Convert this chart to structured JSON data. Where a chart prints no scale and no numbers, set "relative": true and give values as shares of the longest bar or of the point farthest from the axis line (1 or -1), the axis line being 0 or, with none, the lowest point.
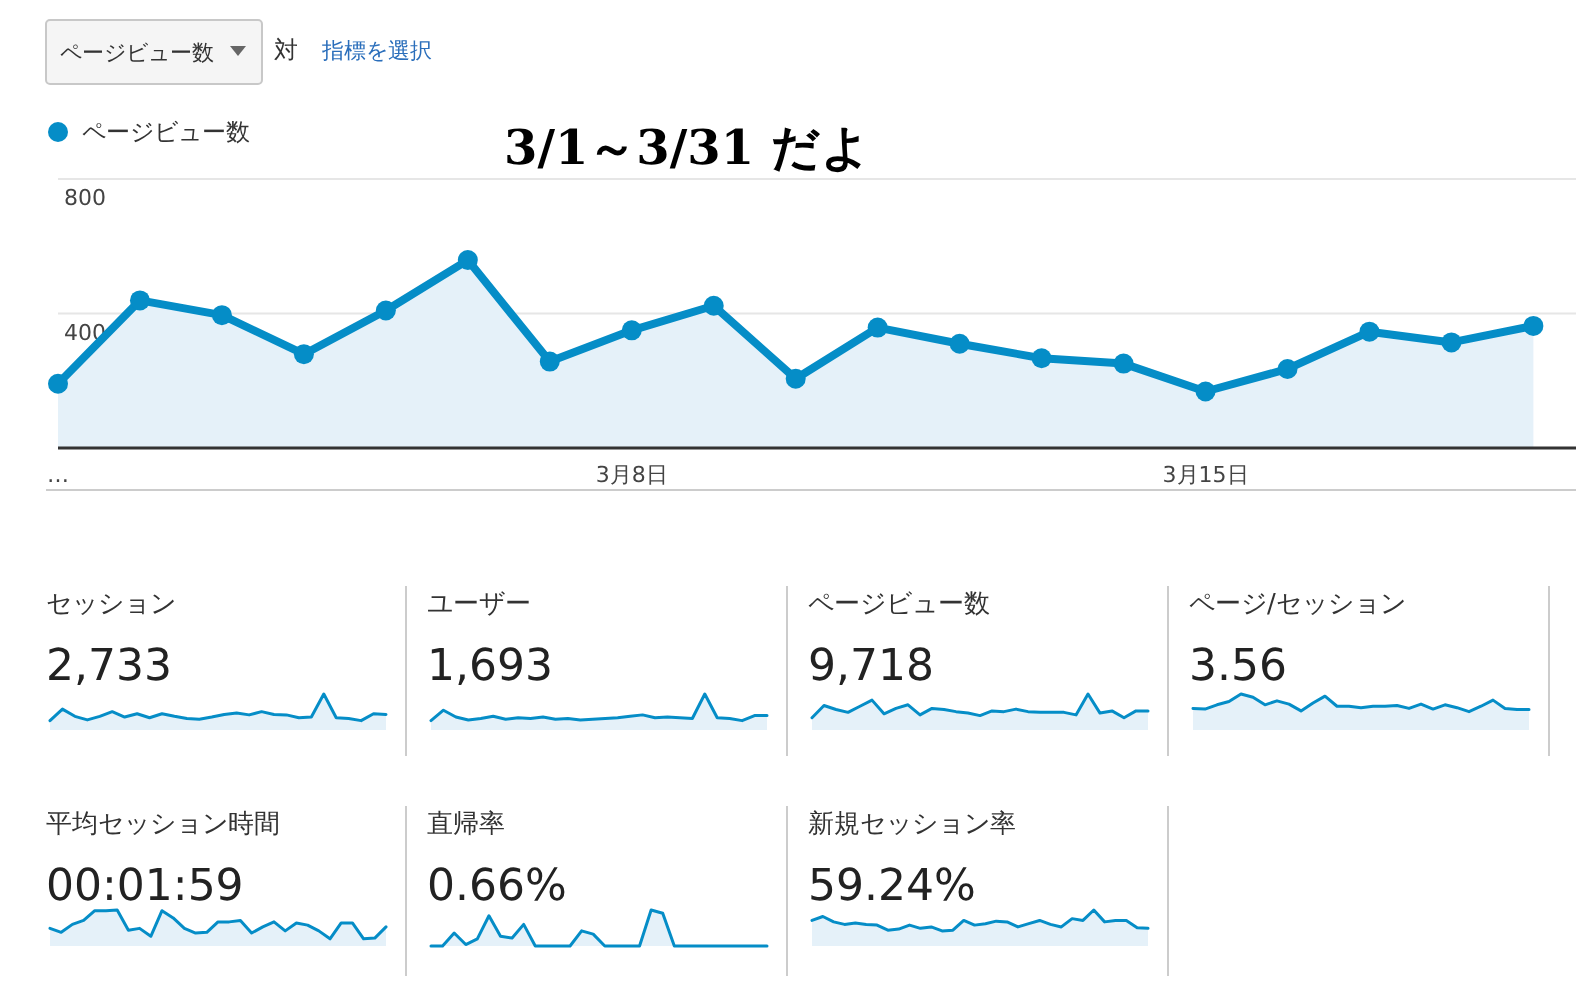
{
  "chart_data": [
    {
      "type": "area",
      "categories": [
        "…",
        null,
        null,
        null,
        null,
        null,
        null,
        "3月8日",
        null,
        null,
        null,
        null,
        null,
        null,
        "3月15日",
        null,
        null,
        null,
        null
      ],
      "series": [
        {
          "name": "ページビュー数",
          "color": "#058dc7",
          "values": [
            191,
            439,
            395,
            279,
            409,
            559,
            257,
            350,
            423,
            206,
            358,
            310,
            267,
            251,
            168,
            235,
            346,
            314,
            363
          ]
        }
      ],
      "ylim": [
        0,
        800
      ],
      "yticks": [
        400,
        800
      ],
      "grid": "y",
      "legend": "top left",
      "marker": "circle",
      "annotations": [
        "ページビュー数",
        "対",
        "指標を選択",
        "3/1～3/31 だよ"
      ]
    },
    {
      "type": "area",
      "title": "セッション",
      "annotations": [
        "2,733"
      ],
      "relative": true,
      "color": "#058dc7",
      "categories": [
        null,
        null,
        null,
        null,
        null,
        null,
        null,
        null,
        null,
        null,
        null,
        null,
        null,
        null,
        null,
        null,
        null,
        null,
        null,
        null,
        null,
        null,
        null,
        null,
        null,
        null,
        null,
        null
      ],
      "values": [
        0.26,
        0.58,
        0.38,
        0.28,
        0.38,
        0.51,
        0.36,
        0.45,
        0.34,
        0.45,
        0.38,
        0.32,
        0.3,
        0.36,
        0.43,
        0.47,
        0.42,
        0.51,
        0.43,
        0.42,
        0.34,
        0.36,
        1,
        0.34,
        0.32,
        0.26,
        0.45,
        0.43
      ]
    },
    {
      "type": "area",
      "title": "ユーザー",
      "annotations": [
        "1,693"
      ],
      "relative": true,
      "color": "#058dc7",
      "categories": [
        null,
        null,
        null,
        null,
        null,
        null,
        null,
        null,
        null,
        null,
        null,
        null,
        null,
        null,
        null,
        null,
        null,
        null,
        null,
        null,
        null,
        null,
        null,
        null,
        null,
        null,
        null,
        null
      ],
      "values": [
        0.26,
        0.55,
        0.36,
        0.28,
        0.32,
        0.38,
        0.3,
        0.34,
        0.32,
        0.36,
        0.3,
        0.32,
        0.28,
        0.3,
        0.32,
        0.34,
        0.38,
        0.42,
        0.34,
        0.36,
        0.34,
        0.32,
        1,
        0.34,
        0.32,
        0.26,
        0.4,
        0.4
      ]
    },
    {
      "type": "area",
      "title": "ページビュー数",
      "annotations": [
        "9,718"
      ],
      "relative": true,
      "color": "#058dc7",
      "categories": [
        null,
        null,
        null,
        null,
        null,
        null,
        null,
        null,
        null,
        null,
        null,
        null,
        null,
        null,
        null,
        null,
        null,
        null,
        null,
        null,
        null,
        null,
        null,
        null,
        null,
        null,
        null,
        null,
        null
      ],
      "values": [
        0.34,
        0.68,
        0.57,
        0.49,
        0.66,
        0.83,
        0.45,
        0.6,
        0.7,
        0.42,
        0.6,
        0.57,
        0.51,
        0.47,
        0.4,
        0.53,
        0.51,
        0.58,
        0.51,
        0.49,
        0.49,
        0.49,
        0.42,
        1,
        0.47,
        0.53,
        0.34,
        0.53,
        0.53
      ]
    },
    {
      "type": "area",
      "title": "ページ/セッション",
      "annotations": [
        "3.56"
      ],
      "relative": true,
      "color": "#058dc7",
      "categories": [
        null,
        null,
        null,
        null,
        null,
        null,
        null,
        null,
        null,
        null,
        null,
        null,
        null,
        null,
        null,
        null,
        null,
        null,
        null,
        null,
        null,
        null,
        null,
        null,
        null,
        null,
        null,
        null,
        null
      ],
      "values": [
        0.6,
        0.58,
        0.7,
        0.79,
        1,
        0.91,
        0.7,
        0.81,
        0.72,
        0.53,
        0.75,
        0.94,
        0.66,
        0.66,
        0.62,
        0.66,
        0.66,
        0.68,
        0.6,
        0.72,
        0.58,
        0.7,
        0.62,
        0.51,
        0.66,
        0.83,
        0.6,
        0.57,
        0.57
      ]
    },
    {
      "type": "area",
      "title": "平均セッション時間",
      "annotations": [
        "00:01:59"
      ],
      "relative": true,
      "color": "#058dc7",
      "categories": [
        null,
        null,
        null,
        null,
        null,
        null,
        null,
        null,
        null,
        null,
        null,
        null,
        null,
        null,
        null,
        null,
        null,
        null,
        null,
        null,
        null,
        null,
        null,
        null,
        null,
        null,
        null,
        null,
        null,
        null,
        null
      ],
      "values": [
        0.49,
        0.38,
        0.6,
        0.71,
        0.98,
        0.98,
        1,
        0.44,
        0.49,
        0.27,
        0.98,
        0.78,
        0.49,
        0.36,
        0.38,
        0.67,
        0.67,
        0.71,
        0.36,
        0.53,
        0.67,
        0.42,
        0.64,
        0.58,
        0.42,
        0.2,
        0.64,
        0.64,
        0.2,
        0.22,
        0.53
      ]
    },
    {
      "type": "area",
      "title": "直帰率",
      "annotations": [
        "0.66%"
      ],
      "relative": true,
      "color": "#058dc7",
      "categories": [
        null,
        null,
        null,
        null,
        null,
        null,
        null,
        null,
        null,
        null,
        null,
        null,
        null,
        null,
        null,
        null,
        null,
        null,
        null,
        null,
        null,
        null,
        null,
        null,
        null,
        null,
        null,
        null,
        null,
        null
      ],
      "values": [
        0,
        0,
        0.36,
        0.04,
        0.2,
        0.84,
        0.27,
        0.22,
        0.6,
        0,
        0,
        0,
        0,
        0.42,
        0.33,
        0,
        0,
        0,
        0,
        1,
        0.91,
        0,
        0,
        0,
        0,
        0,
        0,
        0,
        0,
        0
      ]
    },
    {
      "type": "area",
      "title": "新規セッション率",
      "annotations": [
        "59.24%"
      ],
      "relative": true,
      "color": "#058dc7",
      "categories": [
        null,
        null,
        null,
        null,
        null,
        null,
        null,
        null,
        null,
        null,
        null,
        null,
        null,
        null,
        null,
        null,
        null,
        null,
        null,
        null,
        null,
        null,
        null,
        null,
        null,
        null,
        null,
        null,
        null,
        null,
        null,
        null
      ],
      "values": [
        0.71,
        0.82,
        0.67,
        0.6,
        0.64,
        0.6,
        0.58,
        0.44,
        0.47,
        0.58,
        0.49,
        0.53,
        0.42,
        0.44,
        0.71,
        0.58,
        0.62,
        0.69,
        0.67,
        0.53,
        0.62,
        0.71,
        0.6,
        0.53,
        0.76,
        0.71,
        1,
        0.67,
        0.71,
        0.71,
        0.51,
        0.49
      ]
    }
  ]
}
